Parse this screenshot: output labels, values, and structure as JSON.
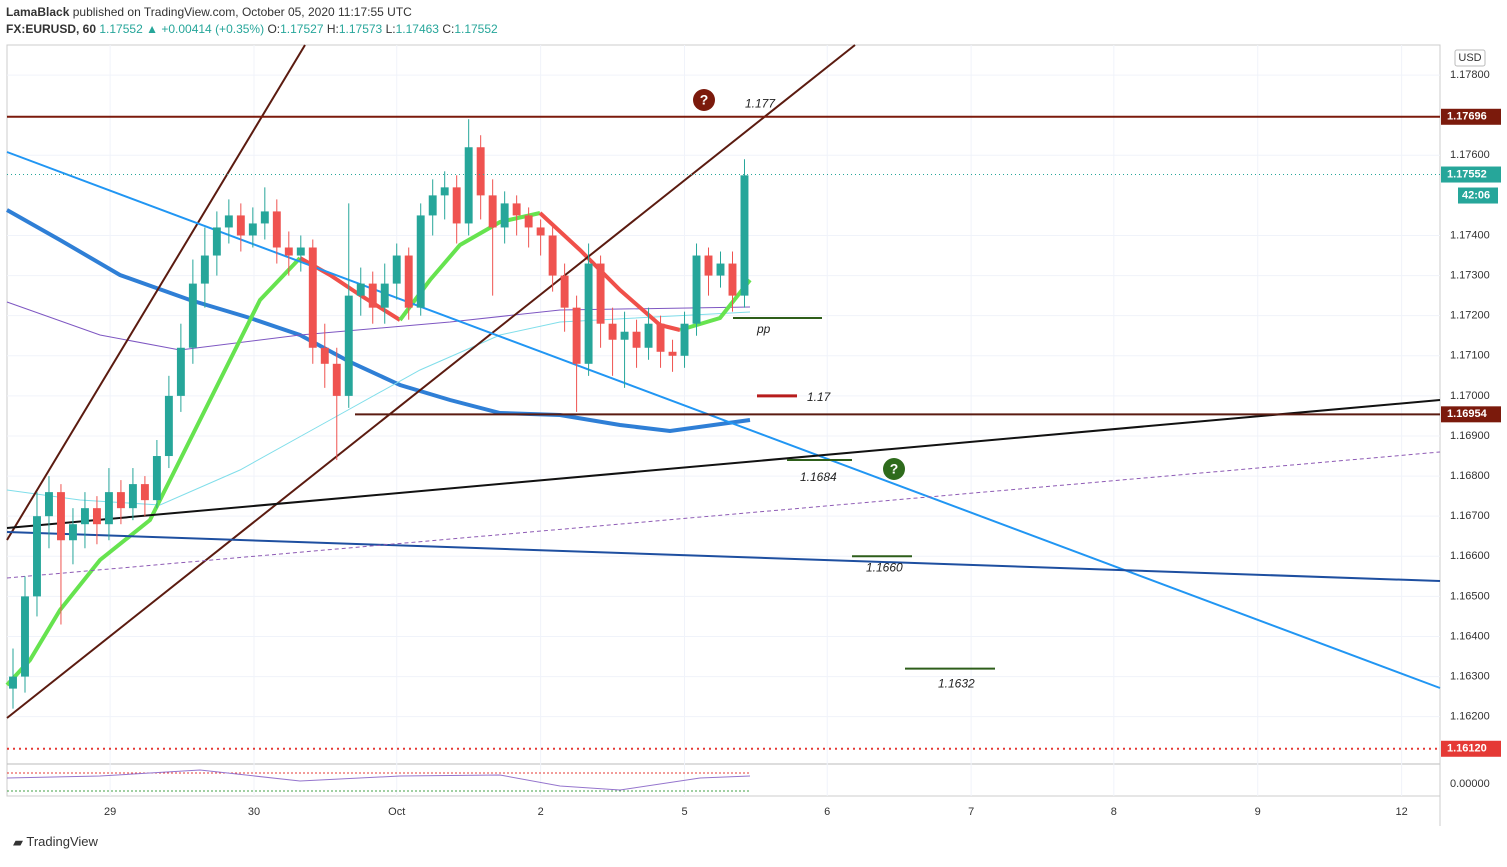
{
  "header": {
    "publisher": "LamaBlack",
    "published": "published on TradingView.com, October 05, 2020 11:17:55 UTC",
    "symbol": "FX:EURUSD, 60",
    "last": "1.17552",
    "arrow": "▲",
    "change": "+0.00414 (+0.35%)",
    "o_label": "O:",
    "o": "1.17527",
    "h_label": "H:",
    "h": "1.17573",
    "l_label": "L:",
    "l": "1.17463",
    "c_label": "C:",
    "c": "1.17552"
  },
  "chart_data": {
    "type": "candlestick",
    "currency": "USD",
    "up_color": "#26a69a",
    "down_color": "#ef5350",
    "open": [
      1.1627,
      1.163,
      1.165,
      1.167,
      1.1676,
      1.1664,
      1.1668,
      1.1672,
      1.1668,
      1.1676,
      1.1672,
      1.1678,
      1.1674,
      1.1685,
      1.17,
      1.1712,
      1.1728,
      1.1735,
      1.1742,
      1.1745,
      1.174,
      1.1743,
      1.1746,
      1.1737,
      1.1735,
      1.1737,
      1.1712,
      1.1708,
      1.17,
      1.1725,
      1.1728,
      1.1722,
      1.1728,
      1.1735,
      1.1722,
      1.1745,
      1.175,
      1.1752,
      1.1743,
      1.1762,
      1.175,
      1.1742,
      1.1748,
      1.1745,
      1.1742,
      1.174,
      1.173,
      1.1722,
      1.1708,
      1.1733,
      1.1718,
      1.1714,
      1.1716,
      1.1712,
      1.1718,
      1.1711,
      1.171,
      1.1718,
      1.1735,
      1.173,
      1.1733,
      1.1725
    ],
    "high": [
      1.1637,
      1.1655,
      1.1676,
      1.168,
      1.1678,
      1.1672,
      1.1676,
      1.1675,
      1.1682,
      1.1679,
      1.1682,
      1.168,
      1.1689,
      1.1705,
      1.1718,
      1.1734,
      1.1742,
      1.1746,
      1.1749,
      1.1748,
      1.1747,
      1.1752,
      1.1749,
      1.1741,
      1.174,
      1.1739,
      1.1718,
      1.1712,
      1.1748,
      1.1732,
      1.1731,
      1.1733,
      1.1738,
      1.1737,
      1.1748,
      1.1754,
      1.1756,
      1.1755,
      1.1769,
      1.1765,
      1.1754,
      1.1751,
      1.175,
      1.1747,
      1.1744,
      1.1743,
      1.1733,
      1.1725,
      1.1738,
      1.1735,
      1.1722,
      1.1721,
      1.1719,
      1.1722,
      1.172,
      1.1714,
      1.1721,
      1.1738,
      1.1737,
      1.1736,
      1.1736,
      1.1759
    ],
    "low": [
      1.1622,
      1.1626,
      1.1645,
      1.1662,
      1.1643,
      1.1658,
      1.1662,
      1.1663,
      1.1664,
      1.1668,
      1.1669,
      1.167,
      1.1672,
      1.1682,
      1.1696,
      1.1708,
      1.1722,
      1.173,
      1.1738,
      1.1736,
      1.1737,
      1.1739,
      1.1733,
      1.173,
      1.1731,
      1.1708,
      1.1702,
      1.1684,
      1.1697,
      1.172,
      1.1718,
      1.1718,
      1.1724,
      1.1719,
      1.172,
      1.174,
      1.1744,
      1.1738,
      1.174,
      1.1744,
      1.1725,
      1.1738,
      1.174,
      1.1737,
      1.1735,
      1.1726,
      1.1716,
      1.1696,
      1.1705,
      1.1712,
      1.1705,
      1.1702,
      1.1707,
      1.1709,
      1.1707,
      1.1706,
      1.1707,
      1.1715,
      1.1725,
      1.1727,
      1.1721,
      1.1722
    ],
    "close": [
      1.163,
      1.165,
      1.167,
      1.1676,
      1.1664,
      1.1668,
      1.1672,
      1.1668,
      1.1676,
      1.1672,
      1.1678,
      1.1674,
      1.1685,
      1.17,
      1.1712,
      1.1728,
      1.1735,
      1.1742,
      1.1745,
      1.174,
      1.1743,
      1.1746,
      1.1737,
      1.1735,
      1.1737,
      1.1712,
      1.1708,
      1.17,
      1.1725,
      1.1728,
      1.1722,
      1.1728,
      1.1735,
      1.1722,
      1.1745,
      1.175,
      1.1752,
      1.1743,
      1.1762,
      1.175,
      1.1742,
      1.1748,
      1.1745,
      1.1742,
      1.174,
      1.173,
      1.1722,
      1.1708,
      1.1733,
      1.1718,
      1.1714,
      1.1716,
      1.1712,
      1.1718,
      1.1711,
      1.171,
      1.1718,
      1.1735,
      1.173,
      1.1733,
      1.1725,
      1.1755
    ],
    "xlim": [
      0,
      119.5
    ],
    "xticks": [
      {
        "value": 8.6,
        "label": "29"
      },
      {
        "value": 20.6,
        "label": "30"
      },
      {
        "value": 32.5,
        "label": "Oct"
      },
      {
        "value": 44.5,
        "label": "2"
      },
      {
        "value": 56.5,
        "label": "5"
      },
      {
        "value": 68.4,
        "label": "6"
      },
      {
        "value": 80.4,
        "label": "7"
      },
      {
        "value": 92.3,
        "label": "8"
      },
      {
        "value": 104.3,
        "label": "9"
      },
      {
        "value": 116.3,
        "label": "12"
      }
    ],
    "ylim": [
      1.16087,
      1.17875
    ],
    "yticks": [
      {
        "value": 1.178,
        "label": "1.17800"
      },
      {
        "value": 1.176,
        "label": "1.17600"
      },
      {
        "value": 1.174,
        "label": "1.17400"
      },
      {
        "value": 1.173,
        "label": "1.17300"
      },
      {
        "value": 1.172,
        "label": "1.17200"
      },
      {
        "value": 1.171,
        "label": "1.17100"
      },
      {
        "value": 1.17,
        "label": "1.17000"
      },
      {
        "value": 1.169,
        "label": "1.16900"
      },
      {
        "value": 1.168,
        "label": "1.16800"
      },
      {
        "value": 1.167,
        "label": "1.16700"
      },
      {
        "value": 1.166,
        "label": "1.16600"
      },
      {
        "value": 1.165,
        "label": "1.16500"
      },
      {
        "value": 1.164,
        "label": "1.16400"
      },
      {
        "value": 1.163,
        "label": "1.16300"
      },
      {
        "value": 1.162,
        "label": "1.16200"
      }
    ],
    "price_tags": [
      {
        "value": 1.17696,
        "color": "#7b1a0c"
      },
      {
        "value": 1.17552,
        "color": "#26a69a"
      },
      {
        "value": 1.16954,
        "color": "#7b1a0c"
      },
      {
        "value": 1.1612,
        "label": "1.16120",
        "color": "#e53935"
      }
    ],
    "countdown": "42:06",
    "annotations": [
      {
        "value": 1.177
      },
      {
        "value": 1.17
      },
      {
        "value": 1.1684,
        "label": "1.1684"
      },
      {
        "value": 1.166,
        "label": "1.1660"
      },
      {
        "value": 1.1632
      }
    ],
    "pp_label": "pp",
    "oscillator_tick": {
      "value": 0,
      "label": "0.00000"
    }
  },
  "footer": {
    "brand": "TradingView"
  }
}
